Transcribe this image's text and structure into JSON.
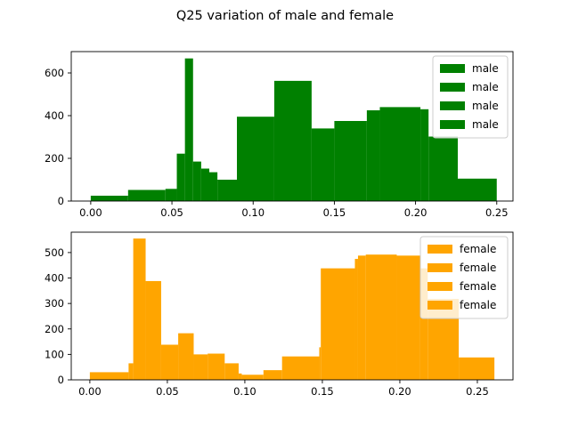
{
  "figure_title": "Q25 variation of male and female",
  "chart_data": [
    {
      "type": "histogram",
      "title": "",
      "xlabel": "",
      "ylabel": "",
      "xlim": [
        -0.012,
        0.26
      ],
      "ylim": [
        0,
        700
      ],
      "xticks": [
        0.0,
        0.05,
        0.1,
        0.15,
        0.2,
        0.25
      ],
      "xtick_labels": [
        "0.00",
        "0.05",
        "0.10",
        "0.15",
        "0.20",
        "0.25"
      ],
      "yticks": [
        0,
        200,
        400,
        600
      ],
      "ytick_labels": [
        "0",
        "200",
        "400",
        "600"
      ],
      "legend": {
        "position": "top-right",
        "entries": [
          "male",
          "male",
          "male",
          "male"
        ]
      },
      "color": "#008000",
      "bins": [
        [
          0.0,
          0.023,
          25
        ],
        [
          0.023,
          0.046,
          52
        ],
        [
          0.046,
          0.053,
          57
        ],
        [
          0.053,
          0.058,
          222
        ],
        [
          0.058,
          0.063,
          668
        ],
        [
          0.063,
          0.068,
          185
        ],
        [
          0.068,
          0.073,
          152
        ],
        [
          0.073,
          0.078,
          135
        ],
        [
          0.078,
          0.09,
          100
        ],
        [
          0.09,
          0.113,
          395
        ],
        [
          0.113,
          0.136,
          563
        ],
        [
          0.136,
          0.15,
          340
        ],
        [
          0.15,
          0.17,
          375
        ],
        [
          0.17,
          0.178,
          425
        ],
        [
          0.178,
          0.203,
          440
        ],
        [
          0.203,
          0.208,
          430
        ],
        [
          0.208,
          0.226,
          302
        ],
        [
          0.226,
          0.25,
          105
        ]
      ]
    },
    {
      "type": "histogram",
      "title": "",
      "xlabel": "",
      "ylabel": "",
      "xlim": [
        -0.012,
        0.273
      ],
      "ylim": [
        0,
        580
      ],
      "xticks": [
        0.0,
        0.05,
        0.1,
        0.15,
        0.2,
        0.25
      ],
      "xtick_labels": [
        "0.00",
        "0.05",
        "0.10",
        "0.15",
        "0.20",
        "0.25"
      ],
      "yticks": [
        0,
        100,
        200,
        300,
        400,
        500
      ],
      "ytick_labels": [
        "0",
        "100",
        "200",
        "300",
        "400",
        "500"
      ],
      "legend": {
        "position": "top-right",
        "entries": [
          "female",
          "female",
          "female",
          "female"
        ]
      },
      "color": "#FFA500",
      "bins": [
        [
          0.0,
          0.025,
          30
        ],
        [
          0.025,
          0.028,
          65
        ],
        [
          0.028,
          0.036,
          555
        ],
        [
          0.036,
          0.046,
          388
        ],
        [
          0.046,
          0.057,
          138
        ],
        [
          0.057,
          0.067,
          183
        ],
        [
          0.067,
          0.076,
          100
        ],
        [
          0.076,
          0.087,
          103
        ],
        [
          0.087,
          0.096,
          65
        ],
        [
          0.096,
          0.098,
          25
        ],
        [
          0.098,
          0.112,
          20
        ],
        [
          0.112,
          0.124,
          38
        ],
        [
          0.124,
          0.148,
          92
        ],
        [
          0.148,
          0.149,
          128
        ],
        [
          0.149,
          0.171,
          438
        ],
        [
          0.171,
          0.173,
          475
        ],
        [
          0.173,
          0.178,
          488
        ],
        [
          0.178,
          0.198,
          492
        ],
        [
          0.198,
          0.213,
          488
        ],
        [
          0.213,
          0.218,
          438
        ],
        [
          0.218,
          0.238,
          318
        ],
        [
          0.238,
          0.261,
          88
        ]
      ]
    }
  ]
}
